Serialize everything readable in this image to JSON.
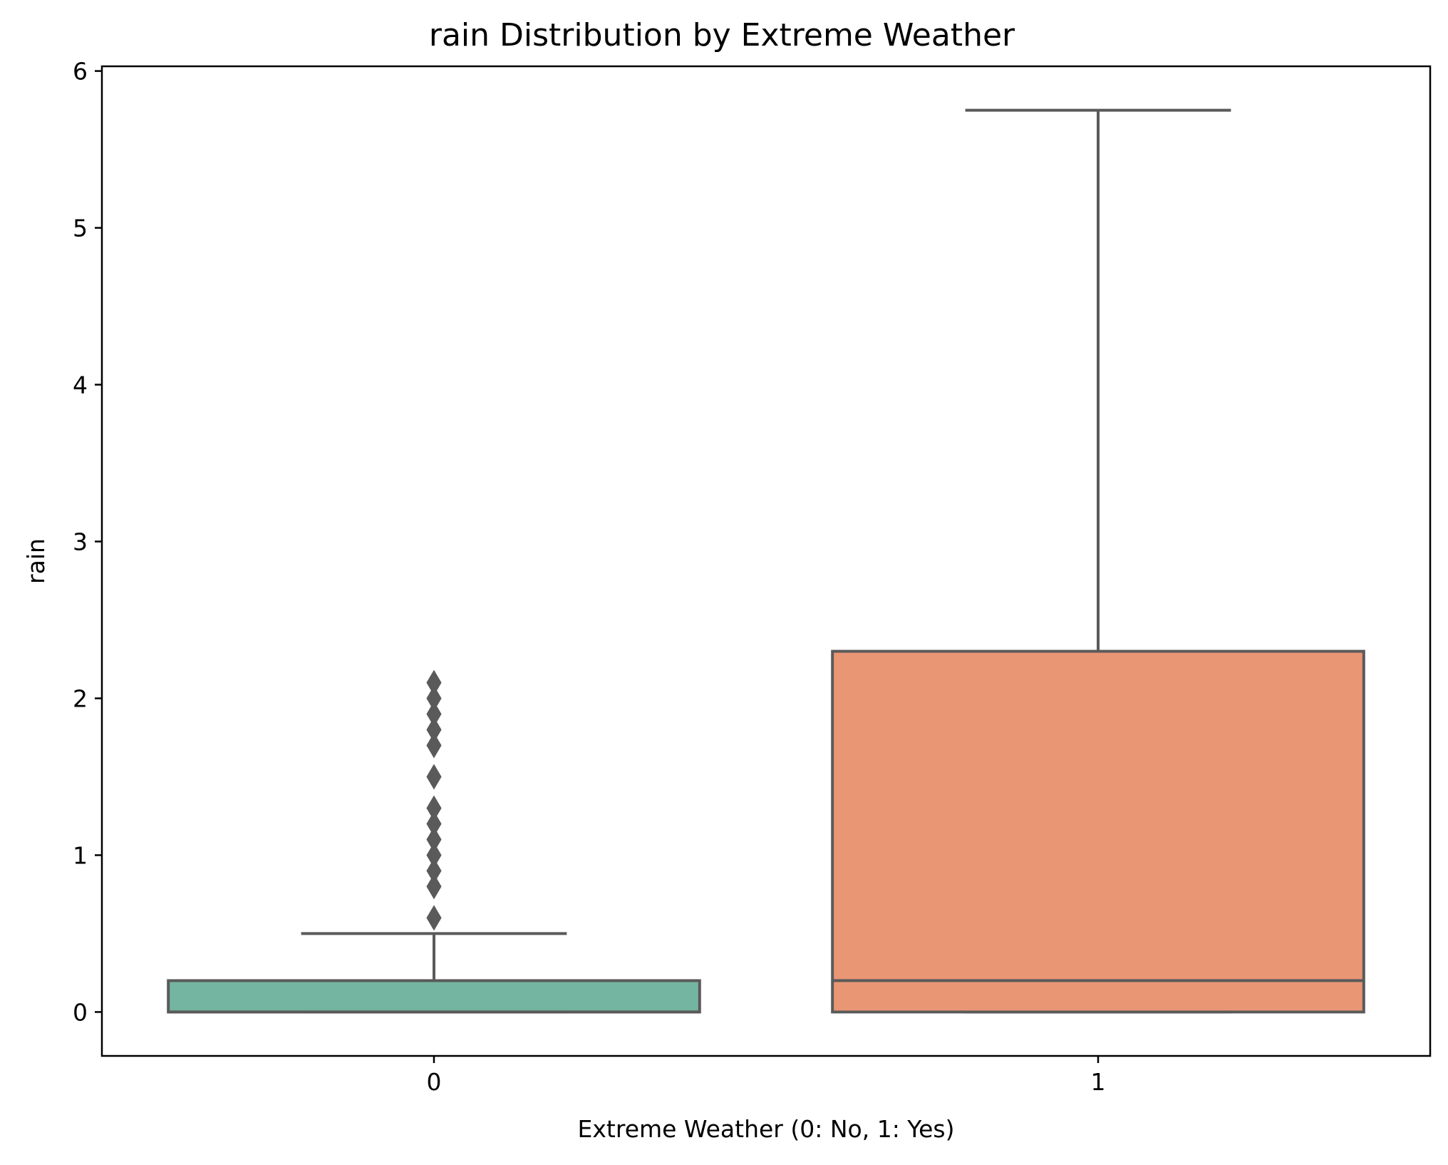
{
  "chart_data": {
    "type": "box",
    "title": "rain Distribution by Extreme Weather",
    "xlabel": "Extreme Weather (0: No, 1: Yes)",
    "ylabel": "rain",
    "ylim": [
      -0.28,
      6.03
    ],
    "yticks": [
      0,
      1,
      2,
      3,
      4,
      5,
      6
    ],
    "categories": [
      "0",
      "1"
    ],
    "grid": false,
    "legend": "none",
    "series": [
      {
        "category": "0",
        "color": "#73b5a0",
        "whisker_low": 0.0,
        "q1": 0.0,
        "median": 0.0,
        "q3": 0.2,
        "whisker_high": 0.5,
        "outliers": [
          0.6,
          0.8,
          0.9,
          1.0,
          1.1,
          1.2,
          1.3,
          1.5,
          1.7,
          1.8,
          1.9,
          2.0,
          2.1
        ]
      },
      {
        "category": "1",
        "color": "#e99675",
        "whisker_low": 0.0,
        "q1": 0.0,
        "median": 0.2,
        "q3": 2.3,
        "whisker_high": 5.75,
        "outliers": []
      }
    ],
    "line_color": "#5a5a5a"
  }
}
